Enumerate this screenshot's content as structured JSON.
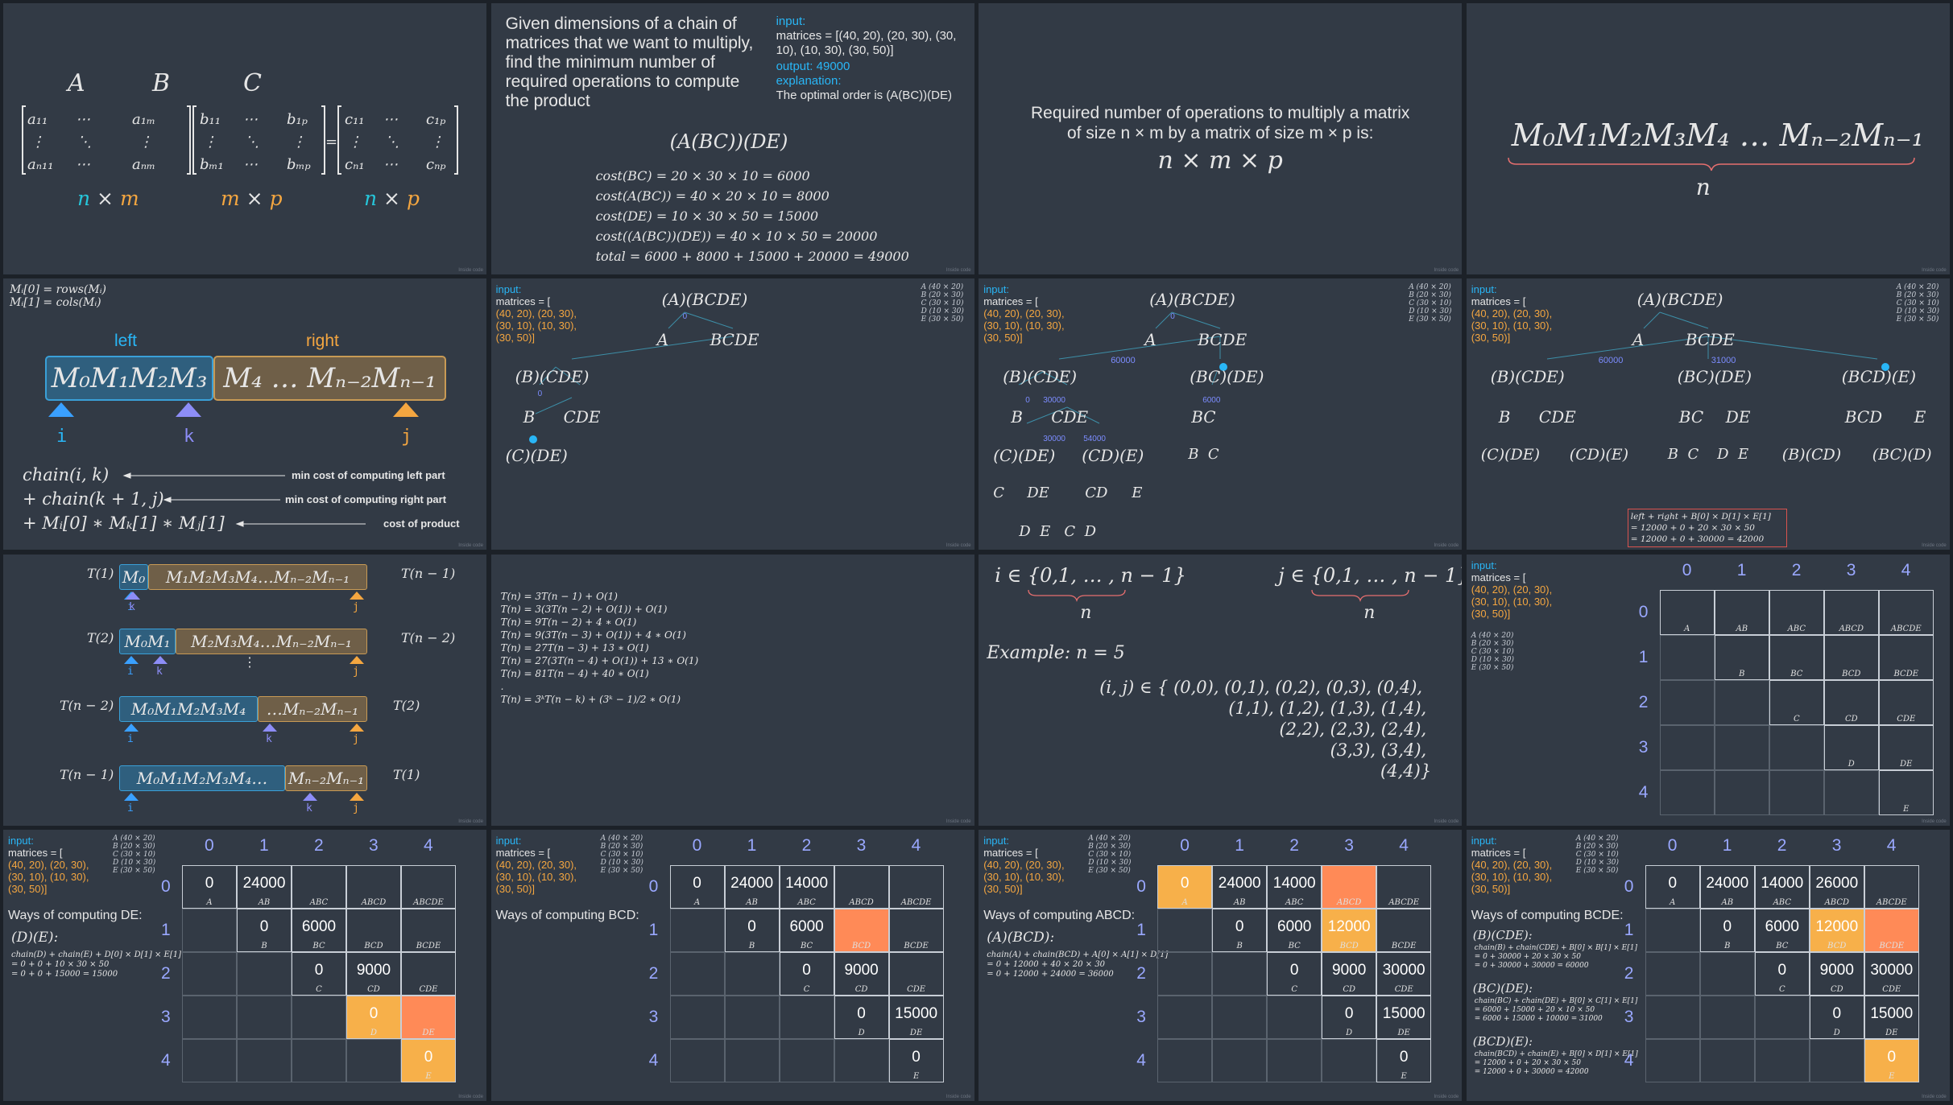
{
  "matrix_intro": {
    "A": "A",
    "B": "B",
    "C": "C",
    "dims": [
      "n × m",
      "m × p",
      "n × p"
    ]
  },
  "problem": {
    "statement": "Given dimensions of a chain of matrices that we want to multiply, find the minimum number of required operations to compute the product",
    "input_label": "input:",
    "input_text": "matrices = [(40, 20), (20, 30), (30, 10), (10, 30), (30, 50)]",
    "output_text": "output: 49000",
    "explanation_label": "explanation:",
    "explanation_text": "The optimal order is (A(BC))(DE)",
    "order": "(A(BC))(DE)",
    "costs": [
      "cost(BC) = 20 × 30 × 10 = 6000",
      "cost(A(BC)) = 40 × 20 × 10 = 8000",
      "cost(DE) = 10 × 30 × 50 = 15000",
      "cost((A(BC))(DE)) = 40 × 10 × 50 = 20000",
      "total = 6000 + 8000 + 15000 + 20000 = 49000"
    ]
  },
  "ops": {
    "text": "Required number of operations to multiply a matrix of size n × m by a matrix of size m × p is:",
    "formula": "n × m × p"
  },
  "chain": {
    "expr": "M₀M₁M₂M₃M₄ … Mₙ₋₂Mₙ₋₁",
    "n": "n"
  },
  "split": {
    "def1": "Mᵢ[0] = rows(Mᵢ)",
    "def2": "Mᵢ[1] = cols(Mᵢ)",
    "left": "left",
    "right": "right",
    "leftexpr": "M₀M₁M₂M₃",
    "rightexpr": "M₄ … Mₙ₋₂Mₙ₋₁",
    "i": "i",
    "k": "k",
    "j": "j",
    "terms": [
      "chain(i, k)",
      "+ chain(k + 1, j)",
      "+ Mᵢ[0] ∗ Mₖ[1] ∗ Mⱼ[1]"
    ],
    "notes": [
      "min cost of computing left part",
      "min cost of computing right part",
      "cost of product"
    ]
  },
  "common": {
    "input_label": "input:",
    "input_lines": [
      "matrices = [",
      "(40, 20), (20, 30),",
      "(30, 10), (10, 30),",
      "(30, 50)]"
    ],
    "legend": [
      "A (40 × 20)",
      "B (20 × 30)",
      "C (30 × 10)",
      "D (10 × 30)",
      "E (30 × 50)"
    ],
    "watermark": "Inside code"
  },
  "trees": {
    "root": "(A)(BCDE)",
    "a": "A",
    "bcde": "BCDE",
    "bcde_split": "(B)(CDE)",
    "b": "B",
    "cde": "CDE",
    "c_de": "(C)(DE)",
    "bc_de": "(BC)(DE)",
    "bcd_e": "(BCD)(E)",
    "bc": "BC",
    "de": "DE",
    "cd_e": "(CD)(E)",
    "cd": "CD",
    "c": "C",
    "d": "D",
    "e": "E",
    "bcd": "BCD",
    "b_cd": "(B)(CD)",
    "bc_d": "(BC)(D)",
    "nums": [
      "0",
      "0",
      "0",
      "60000",
      "30000",
      "54000",
      "15000",
      "9000",
      "6000",
      "31000",
      "6000",
      "15000",
      "12000",
      "27000",
      "12000",
      "9000",
      "6000"
    ],
    "formula": [
      "left + right + B[0] × D[1] × E[1]",
      "= 12000 + 0 + 20 × 30 × 50",
      "= 12000 + 0 + 30000 = 42000"
    ]
  },
  "recursion": {
    "rows": [
      {
        "l": "T(1)",
        "r": "T(n − 1)"
      },
      {
        "l": "T(2)",
        "r": "T(n − 2)"
      },
      {
        "l": "T(n − 2)",
        "r": "T(2)"
      },
      {
        "l": "T(n − 1)",
        "r": "T(1)"
      }
    ],
    "dots": "⋮"
  },
  "complexity": {
    "lines": [
      "T(n) = 3T(n − 1) + O(1)",
      "T(n) = 3(3T(n − 2) + O(1)) + O(1)",
      "T(n) = 9T(n − 2) + 4 ∗ O(1)",
      "T(n) = 9(3T(n − 3) + O(1)) + 4 ∗ O(1)",
      "T(n) = 27T(n − 3) + 13 ∗ O(1)",
      "T(n) = 27(3T(n − 4) + O(1)) + 13 ∗ O(1)",
      "T(n) = 81T(n − 4) + 40 ∗ O(1)",
      ".",
      "T(n) = 3ᵏT(n − k) + (3ᵏ − 1)/2 ∗ O(1)"
    ]
  },
  "pairs": {
    "i_range": "i ∈ {0,1, … , n − 1}",
    "j_range": "j ∈ {0,1, … , n − 1}",
    "n": "n",
    "example": "Example: n = 5",
    "lines": [
      "(i, j) ∈ { (0,0), (0,1), (0,2), (0,3), (0,4),",
      "(1,1), (1,2), (1,3), (1,4),",
      "(2,2), (2,3), (2,4),",
      "(3,3), (3,4),",
      "(4,4)}"
    ]
  },
  "table": {
    "headers": [
      "0",
      "1",
      "2",
      "3",
      "4"
    ],
    "labels": [
      [
        "A",
        "AB",
        "ABC",
        "ABCD",
        "ABCDE"
      ],
      [
        "",
        "B",
        "BC",
        "BCD",
        "BCDE"
      ],
      [
        "",
        "",
        "C",
        "CD",
        "CDE"
      ],
      [
        "",
        "",
        "",
        "D",
        "DE"
      ],
      [
        "",
        "",
        "",
        "",
        "E"
      ]
    ]
  },
  "dp": [
    {
      "title": "Ways of computing DE:",
      "sub": "(D)(E):",
      "f": [
        "chain(D) + chain(E) + D[0] × D[1] × E[1]",
        "= 0 + 0 + 10 × 30 × 50",
        "= 0 + 0 + 15000 = 15000"
      ],
      "v": [
        [
          "0",
          "24000",
          "",
          "",
          ""
        ],
        [
          "",
          "0",
          "6000",
          "",
          ""
        ],
        [
          "",
          "",
          "0",
          "9000",
          ""
        ],
        [
          "",
          "",
          "",
          "0",
          ""
        ],
        [
          "",
          "",
          "",
          "",
          "0"
        ]
      ]
    },
    {
      "title": "Ways of computing BCD:",
      "v": [
        [
          "0",
          "24000",
          "14000",
          "",
          ""
        ],
        [
          "",
          "0",
          "6000",
          "",
          ""
        ],
        [
          "",
          "",
          "0",
          "9000",
          ""
        ],
        [
          "",
          "",
          "",
          "0",
          "15000"
        ],
        [
          "",
          "",
          "",
          "",
          "0"
        ]
      ]
    },
    {
      "title": "Ways of computing ABCD:",
      "sub": "(A)(BCD):",
      "f": [
        "chain(A) + chain(BCD) + A[0] × A[1] × D[1]",
        "= 0 + 12000 + 40 × 20 × 30",
        "= 0 + 12000 + 24000 = 36000"
      ],
      "v": [
        [
          "0",
          "24000",
          "14000",
          "",
          ""
        ],
        [
          "",
          "0",
          "6000",
          "12000",
          ""
        ],
        [
          "",
          "",
          "0",
          "9000",
          "30000"
        ],
        [
          "",
          "",
          "",
          "0",
          "15000"
        ],
        [
          "",
          "",
          "",
          "",
          "0"
        ]
      ]
    },
    {
      "title": "Ways of computing BCDE:",
      "ways": [
        {
          "sub": "(B)(CDE):",
          "f": [
            "chain(B) + chain(CDE) + B[0] × B[1] × E[1]",
            "= 0 + 30000 + 20 × 30 × 50",
            "= 0 + 30000 + 30000 = 60000"
          ]
        },
        {
          "sub": "(BC)(DE):",
          "f": [
            "chain(BC) + chain(DE) + B[0] × C[1] × E[1]",
            "= 6000 + 15000 + 20 × 10 × 50",
            "= 6000 + 15000 + 10000 = 31000"
          ]
        },
        {
          "sub": "(BCD)(E):",
          "f": [
            "chain(BCD) + chain(E) + B[0] × D[1] × E[1]",
            "= 12000 + 0 + 20 × 30 × 50",
            "= 12000 + 0 + 30000 = 42000"
          ]
        }
      ],
      "v": [
        [
          "0",
          "24000",
          "14000",
          "26000",
          ""
        ],
        [
          "",
          "0",
          "6000",
          "12000",
          ""
        ],
        [
          "",
          "",
          "0",
          "9000",
          "30000"
        ],
        [
          "",
          "",
          "",
          "0",
          "15000"
        ],
        [
          "",
          "",
          "",
          "",
          "0"
        ]
      ]
    }
  ]
}
